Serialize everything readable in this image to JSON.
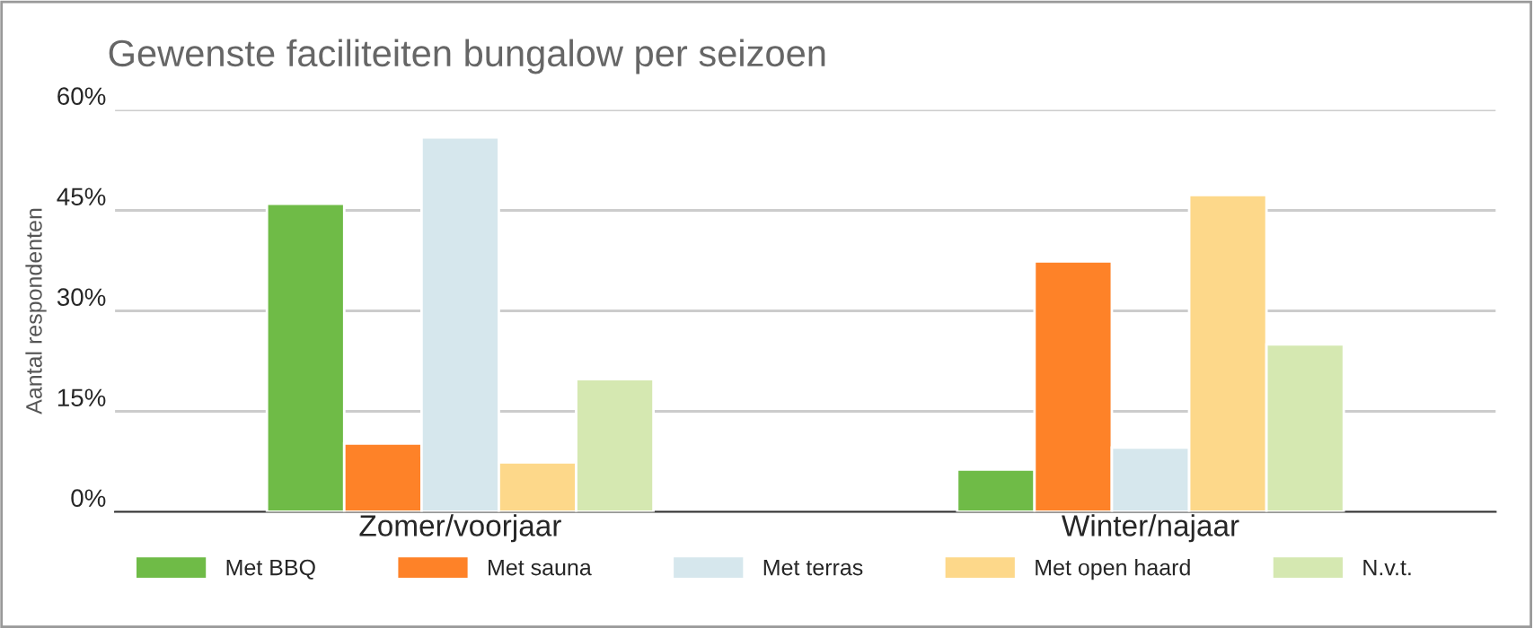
{
  "chart_data": {
    "type": "bar",
    "title": "Gewenste faciliteiten bungalow per seizoen",
    "ylabel": "Aantal respondenten",
    "categories": [
      "Zomer/voorjaar",
      "Winter/najaar"
    ],
    "series": [
      {
        "name": "Met BBQ",
        "color": "#6fbb47",
        "values": [
          46,
          6.3
        ]
      },
      {
        "name": "Met sauna",
        "color": "#fe8228",
        "values": [
          10.2,
          37.4
        ]
      },
      {
        "name": "Met terras",
        "color": "#d6e7ed",
        "values": [
          55.9,
          9.6
        ]
      },
      {
        "name": "Met open haard",
        "color": "#fdd88a",
        "values": [
          7.4,
          47.3
        ]
      },
      {
        "name": "N.v.t.",
        "color": "#d5e8b1",
        "values": [
          19.8,
          25
        ]
      }
    ],
    "ylim": [
      0,
      60
    ],
    "yticks": [
      {
        "value": 0,
        "label": "0%"
      },
      {
        "value": 15,
        "label": "15%"
      },
      {
        "value": 30,
        "label": "30%"
      },
      {
        "value": 45,
        "label": "45%"
      },
      {
        "value": 60,
        "label": "60%"
      }
    ],
    "grid": "y",
    "legend": "bottom"
  }
}
